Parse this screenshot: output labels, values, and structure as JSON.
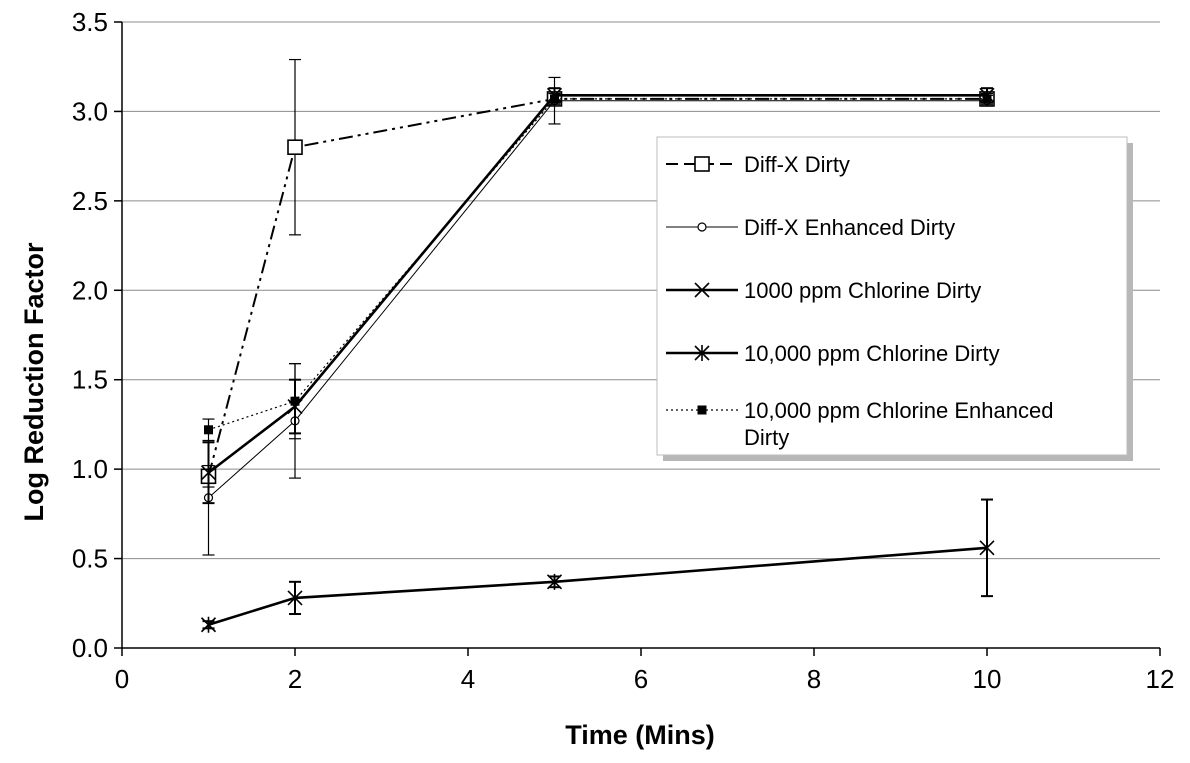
{
  "chart_data": {
    "type": "line",
    "title": "",
    "xlabel": "Time (Mins)",
    "ylabel": "Log Reduction Factor",
    "xlim": [
      0,
      12
    ],
    "ylim": [
      0,
      3.5
    ],
    "x_ticks": [
      0,
      2,
      4,
      6,
      8,
      10,
      12
    ],
    "x_tick_labels": [
      "0",
      "2",
      "4",
      "6",
      "8",
      "10",
      "12"
    ],
    "y_ticks": [
      0,
      0.5,
      1,
      1.5,
      2,
      2.5,
      3,
      3.5
    ],
    "y_tick_labels": [
      "0.0",
      "0.5",
      "1.0",
      "1.5",
      "2.0",
      "2.5",
      "3.0",
      "3.5"
    ],
    "grid": "horizontal",
    "legend_position": "right",
    "series": [
      {
        "name": "Diff-X Dirty",
        "marker": "open-square",
        "line": "dash-dot-dot",
        "x": [
          1,
          2,
          5,
          10
        ],
        "y": [
          0.96,
          2.8,
          3.07,
          3.07
        ],
        "err": [
          0.06,
          0.49,
          0.03,
          0.03
        ]
      },
      {
        "name": "Diff-X Enhanced Dirty",
        "marker": "open-circle",
        "line": "thin-solid",
        "x": [
          1,
          2,
          5,
          10
        ],
        "y": [
          0.84,
          1.27,
          3.06,
          3.06
        ],
        "err": [
          0.32,
          0.32,
          0.13,
          0.03
        ]
      },
      {
        "name": "1000 ppm Chlorine Dirty",
        "marker": "x",
        "line": "solid",
        "x": [
          1,
          2,
          5,
          10
        ],
        "y": [
          0.98,
          1.35,
          3.09,
          3.09
        ],
        "err": [
          0.17,
          0.15,
          0.04,
          0.04
        ]
      },
      {
        "name": "10,000 ppm Chlorine Dirty",
        "marker": "asterisk",
        "line": "solid",
        "x": [
          1,
          2,
          5,
          10
        ],
        "y": [
          0.13,
          0.28,
          0.37,
          0.56
        ],
        "err": [
          0.02,
          0.09,
          0.03,
          0.27
        ]
      },
      {
        "name": "10,000 ppm Chlorine Enhanced Dirty",
        "marker": "filled-square",
        "line": "dotted",
        "x": [
          1,
          2,
          5,
          10
        ],
        "y": [
          1.22,
          1.38,
          3.07,
          3.07
        ],
        "err": [
          0.06,
          0.21,
          0.03,
          0.03
        ]
      }
    ]
  }
}
